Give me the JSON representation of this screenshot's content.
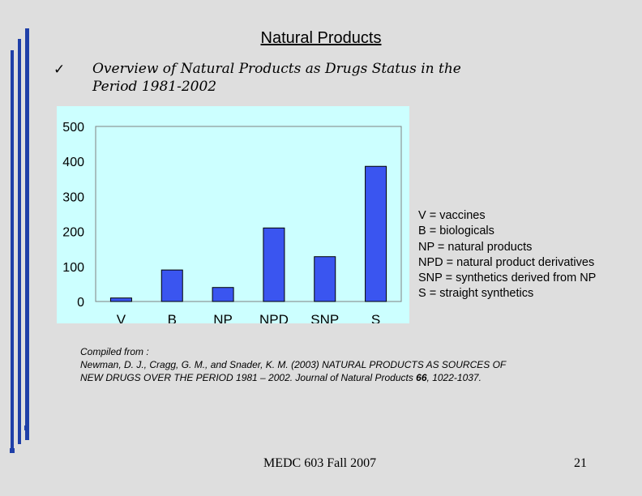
{
  "slide": {
    "title": "Natural Products",
    "check_glyph": "✓",
    "subtitle_line1": "Overview of Natural Products as Drugs Status in the",
    "subtitle_line2": "Period 1981-2002",
    "footer": "MEDC 603 Fall 2007",
    "page_number": "21"
  },
  "legend": [
    "V = vaccines",
    "B = biologicals",
    "NP = natural products",
    "NPD = natural product derivatives",
    "SNP = synthetics derived from NP",
    "S = straight synthetics"
  ],
  "citation": {
    "line1": "Compiled from :",
    "line2": "Newman, D. J., Cragg, G. M., and Snader, K. M. (2003) NATURAL PRODUCTS AS SOURCES OF",
    "line3_pre": "NEW DRUGS OVER THE PERIOD 1981 – 2002. Journal of Natural Products ",
    "line3_bold": "66",
    "line3_post": ", 1022-1037."
  },
  "colors": {
    "bar": "#3a55f0",
    "chart_background": "#ccffff",
    "decor_blue": "#1f3fa8"
  },
  "chart_data": {
    "type": "bar",
    "categories": [
      "V",
      "B",
      "NP",
      "NPD",
      "SNP",
      "S"
    ],
    "values": [
      10,
      90,
      40,
      210,
      128,
      386
    ],
    "ylim": [
      0,
      500
    ],
    "yticks": [
      0,
      100,
      200,
      300,
      400,
      500
    ],
    "title": "",
    "xlabel": "",
    "ylabel": "",
    "grid": false
  }
}
